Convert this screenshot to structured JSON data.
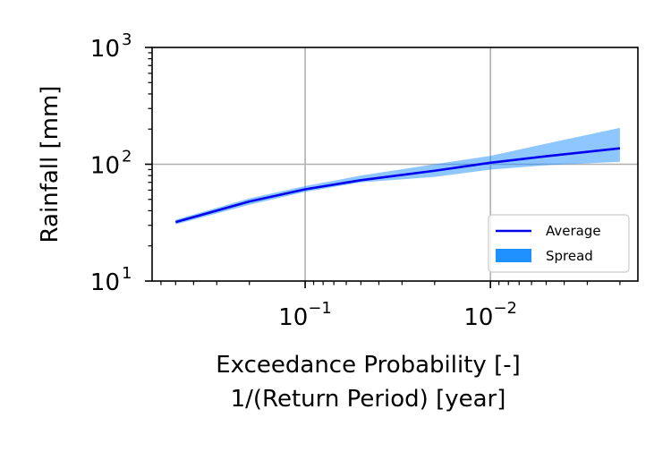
{
  "chart_data": {
    "type": "area",
    "title": "",
    "xlabel": [
      "Exceedance Probability [-]",
      "1/(Return Period) [year]"
    ],
    "ylabel": "Rainfall [mm]",
    "x_scale": "log",
    "x_axis_reversed": true,
    "y_scale": "log",
    "xlim": [
      0.67,
      0.0016
    ],
    "ylim": [
      10,
      1000
    ],
    "x_ticks": [
      {
        "value": 0.1,
        "base": "10",
        "exp": "−1"
      },
      {
        "value": 0.01,
        "base": "10",
        "exp": "−2"
      }
    ],
    "y_ticks": [
      {
        "value": 10,
        "base": "10",
        "exp": "1"
      },
      {
        "value": 100,
        "base": "10",
        "exp": "2"
      },
      {
        "value": 1000,
        "base": "10",
        "exp": "3"
      }
    ],
    "grid": true,
    "legend_position": "lower-right",
    "series": [
      {
        "name": "Average",
        "kind": "line",
        "color": "#0000ee",
        "x": [
          0.5,
          0.2,
          0.1,
          0.05,
          0.02,
          0.01,
          0.005,
          0.002
        ],
        "y": [
          32,
          48,
          61,
          73,
          88,
          103,
          117,
          137
        ]
      },
      {
        "name": "Spread",
        "kind": "band",
        "color": "#1e90ff",
        "opacity": 0.5,
        "x": [
          0.5,
          0.2,
          0.1,
          0.05,
          0.02,
          0.01,
          0.005,
          0.002
        ],
        "y_low": [
          30.5,
          45,
          58,
          70,
          78,
          90,
          98,
          105
        ],
        "y_high": [
          33.5,
          51,
          65,
          80,
          100,
          118,
          150,
          205
        ]
      }
    ]
  }
}
